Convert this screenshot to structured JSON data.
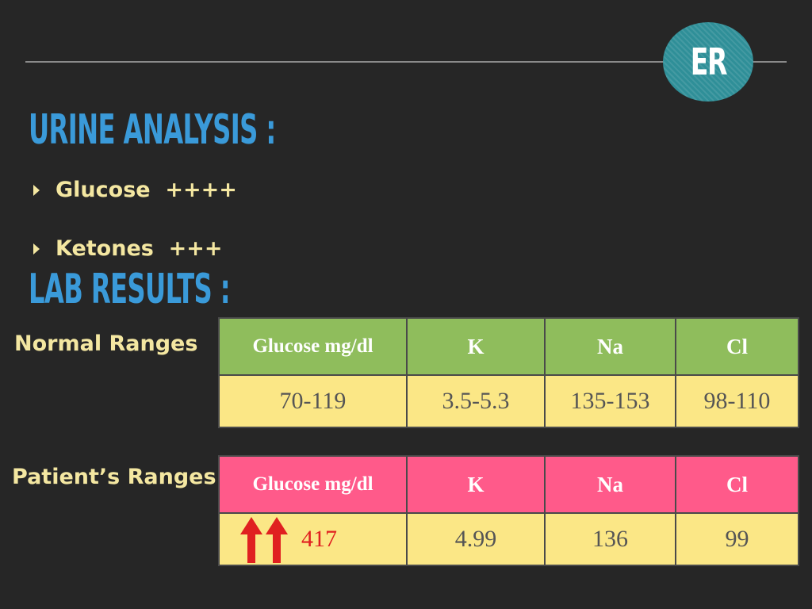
{
  "badge": {
    "label": "ER"
  },
  "urine": {
    "heading": "URINE ANALYSIS :",
    "items": [
      {
        "text": "Glucose  ++++"
      },
      {
        "text": "Ketones  +++"
      }
    ]
  },
  "lab": {
    "heading": "LAB RESULTS :",
    "normal": {
      "label": "Normal Ranges",
      "headers": [
        "Glucose mg/dl",
        "K",
        "Na",
        "Cl"
      ],
      "values": [
        "70-119",
        "3.5-5.3",
        "135-153",
        "98-110"
      ]
    },
    "patient": {
      "label": "Patient’s Ranges",
      "headers": [
        "Glucose mg/dl",
        "K",
        "Na",
        "Cl"
      ],
      "values": [
        "417",
        "4.99",
        "136",
        "99"
      ]
    }
  },
  "colors": {
    "heading": "#3a9ad9",
    "bullet_text": "#f4e7a1",
    "normal_header": "#8fbd5c",
    "patient_header": "#ff5a8a",
    "value_row": "#fbe786",
    "alert": "#e02020",
    "badge": "#2f8f98"
  },
  "icons": [
    "arrow-up-icon",
    "arrow-up-icon"
  ]
}
